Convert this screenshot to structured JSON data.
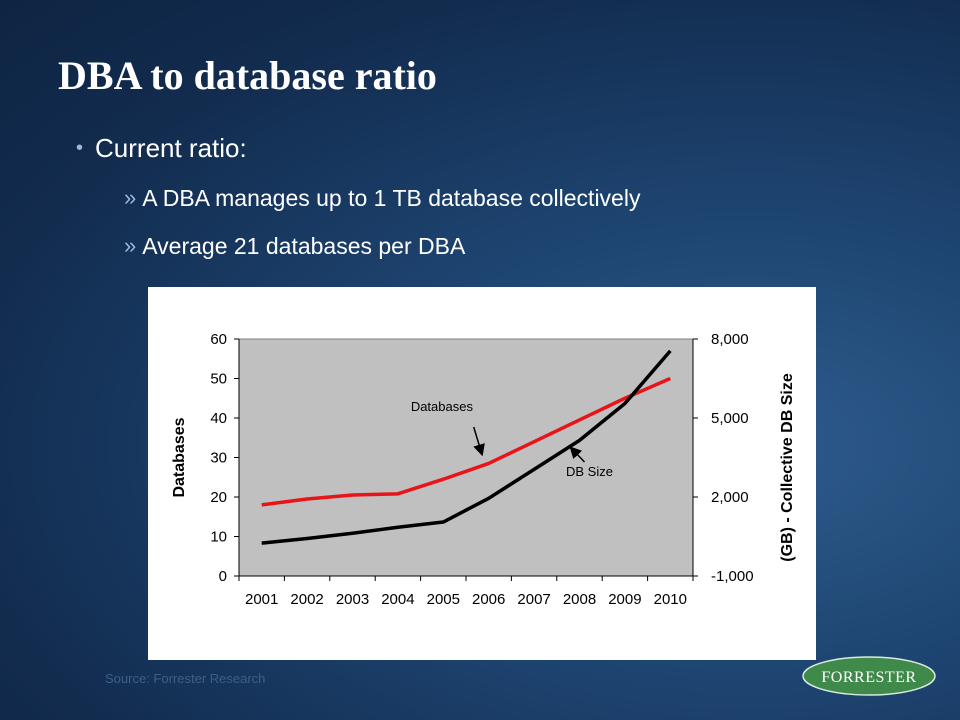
{
  "slide": {
    "title": "DBA to database ratio",
    "bullet": "Current ratio:",
    "sub_bullets": [
      "A DBA manages up to 1 TB database collectively",
      "Average 21 databases per DBA"
    ],
    "source": "Source: Forrester Research",
    "logo_text": "FORRESTER",
    "colors": {
      "background": "#1d4470",
      "databases_line": "#e8141a",
      "dbsize_line": "#000000",
      "plot_area": "#c0c0c0"
    }
  },
  "chart_data": {
    "type": "line",
    "categories": [
      "2001",
      "2002",
      "2003",
      "2004",
      "2005",
      "2006",
      "2007",
      "2008",
      "2009",
      "2010"
    ],
    "left_axis": {
      "label": "Databases",
      "range": [
        0,
        60
      ],
      "ticks": [
        "0",
        "10",
        "20",
        "30",
        "40",
        "50",
        "60"
      ]
    },
    "right_axis": {
      "label": "(GB) - Collective DB Size",
      "range": [
        -1000,
        8000
      ],
      "ticks": [
        "-1,000",
        "2,000",
        "5,000",
        "8,000"
      ]
    },
    "series": [
      {
        "name": "Databases",
        "axis": "left",
        "color": "#e8141a",
        "values": [
          18,
          19.5,
          20.5,
          20.8,
          24.5,
          28.5,
          34,
          39.5,
          45,
          50
        ]
      },
      {
        "name": "DB Size",
        "axis": "right",
        "color": "#000000",
        "values": [
          250,
          425,
          625,
          850,
          1050,
          1950,
          3050,
          4150,
          5550,
          7550
        ]
      }
    ],
    "annotations": [
      {
        "text": "Databases",
        "series": "Databases"
      },
      {
        "text": "DB Size",
        "series": "DB Size"
      }
    ],
    "grid": false
  }
}
